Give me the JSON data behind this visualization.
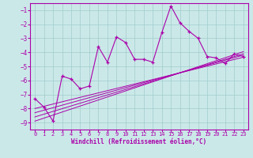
{
  "xlabel": "Windchill (Refroidissement éolien,°C)",
  "bg_color": "#cbe8e8",
  "grid_color": "#a0cccc",
  "line_color": "#aa00aa",
  "x_data": [
    0,
    1,
    2,
    3,
    4,
    5,
    6,
    7,
    8,
    9,
    10,
    11,
    12,
    13,
    14,
    15,
    16,
    17,
    18,
    19,
    20,
    21,
    22,
    23
  ],
  "y_main": [
    -7.3,
    -7.9,
    -8.9,
    -5.7,
    -5.9,
    -6.6,
    -6.4,
    -3.6,
    -4.7,
    -2.9,
    -3.3,
    -4.5,
    -4.5,
    -4.7,
    -2.6,
    -0.7,
    -1.9,
    -2.5,
    -3.0,
    -4.3,
    -4.4,
    -4.8,
    -4.1,
    -4.3
  ],
  "ylim": [
    -9.5,
    -0.5
  ],
  "xlim": [
    -0.5,
    23.5
  ],
  "yticks": [
    -1,
    -2,
    -3,
    -4,
    -5,
    -6,
    -7,
    -8,
    -9
  ],
  "xticks": [
    0,
    1,
    2,
    3,
    4,
    5,
    6,
    7,
    8,
    9,
    10,
    11,
    12,
    13,
    14,
    15,
    16,
    17,
    18,
    19,
    20,
    21,
    22,
    23
  ],
  "reg_lines": [
    {
      "x0": 0,
      "y0": -8.3,
      "x1": 23,
      "y1": -4.2
    },
    {
      "x0": 0,
      "y0": -8.6,
      "x1": 23,
      "y1": -4.1
    },
    {
      "x0": 0,
      "y0": -8.9,
      "x1": 23,
      "y1": -3.95
    },
    {
      "x0": 0,
      "y0": -8.0,
      "x1": 23,
      "y1": -4.35
    }
  ]
}
